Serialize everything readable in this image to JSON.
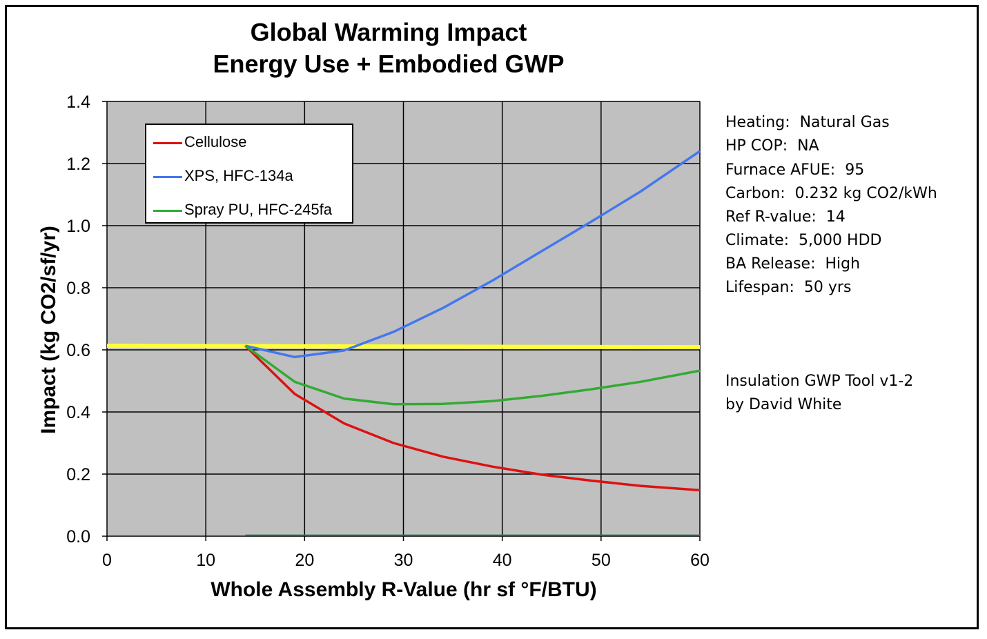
{
  "chart_data": {
    "type": "line",
    "title_lines": [
      "Global Warming Impact",
      "Energy Use + Embodied GWP"
    ],
    "xlabel": "Whole Assembly R-Value (hr sf °F/BTU)",
    "ylabel": "Impact  (kg CO2/sf/yr)",
    "xlim": [
      0,
      60
    ],
    "ylim": [
      0,
      1.4
    ],
    "x_ticks": [
      "0",
      "10",
      "20",
      "30",
      "40",
      "50",
      "60"
    ],
    "y_ticks": [
      "0.0",
      "0.2",
      "0.4",
      "0.6",
      "0.8",
      "1.0",
      "1.2",
      "1.4"
    ],
    "grid": true,
    "plot_background": "#c0c0c0",
    "legend_position": "top-left",
    "reference_line": {
      "y": 0.613,
      "color": "#ffff33"
    },
    "series": [
      {
        "name": "Cellulose",
        "color": "#dd1111",
        "x": [
          14,
          19,
          24,
          29,
          34,
          39,
          44,
          49,
          54,
          60
        ],
        "y": [
          0.613,
          0.458,
          0.363,
          0.3,
          0.256,
          0.224,
          0.198,
          0.179,
          0.162,
          0.148
        ]
      },
      {
        "name": "XPS, HFC-134a",
        "color": "#4477ee",
        "x": [
          14,
          19,
          24,
          29,
          34,
          39,
          44,
          49,
          54,
          60
        ],
        "y": [
          0.613,
          0.577,
          0.598,
          0.658,
          0.735,
          0.823,
          0.918,
          1.013,
          1.11,
          1.24
        ]
      },
      {
        "name": "Spray PU, HFC-245fa",
        "color": "#33aa33",
        "x": [
          14,
          19,
          24,
          29,
          34,
          39,
          44,
          49,
          54,
          60
        ],
        "y": [
          0.613,
          0.497,
          0.443,
          0.425,
          0.426,
          0.435,
          0.452,
          0.473,
          0.497,
          0.533
        ]
      }
    ],
    "baseline_line": {
      "x_start": 14,
      "x_end": 60,
      "y": 0.003,
      "color": "#2e7d4f"
    }
  },
  "notes": [
    "Heating:  Natural Gas",
    "HP COP:  NA",
    "Furnace AFUE:  95",
    "Carbon:  0.232 kg CO2/kWh",
    "Ref R-value:  14",
    "Climate:  5,000 HDD",
    "BA Release:  High",
    "Lifespan:  50 yrs"
  ],
  "credit": [
    "Insulation GWP Tool v1-2",
    "by David White"
  ]
}
